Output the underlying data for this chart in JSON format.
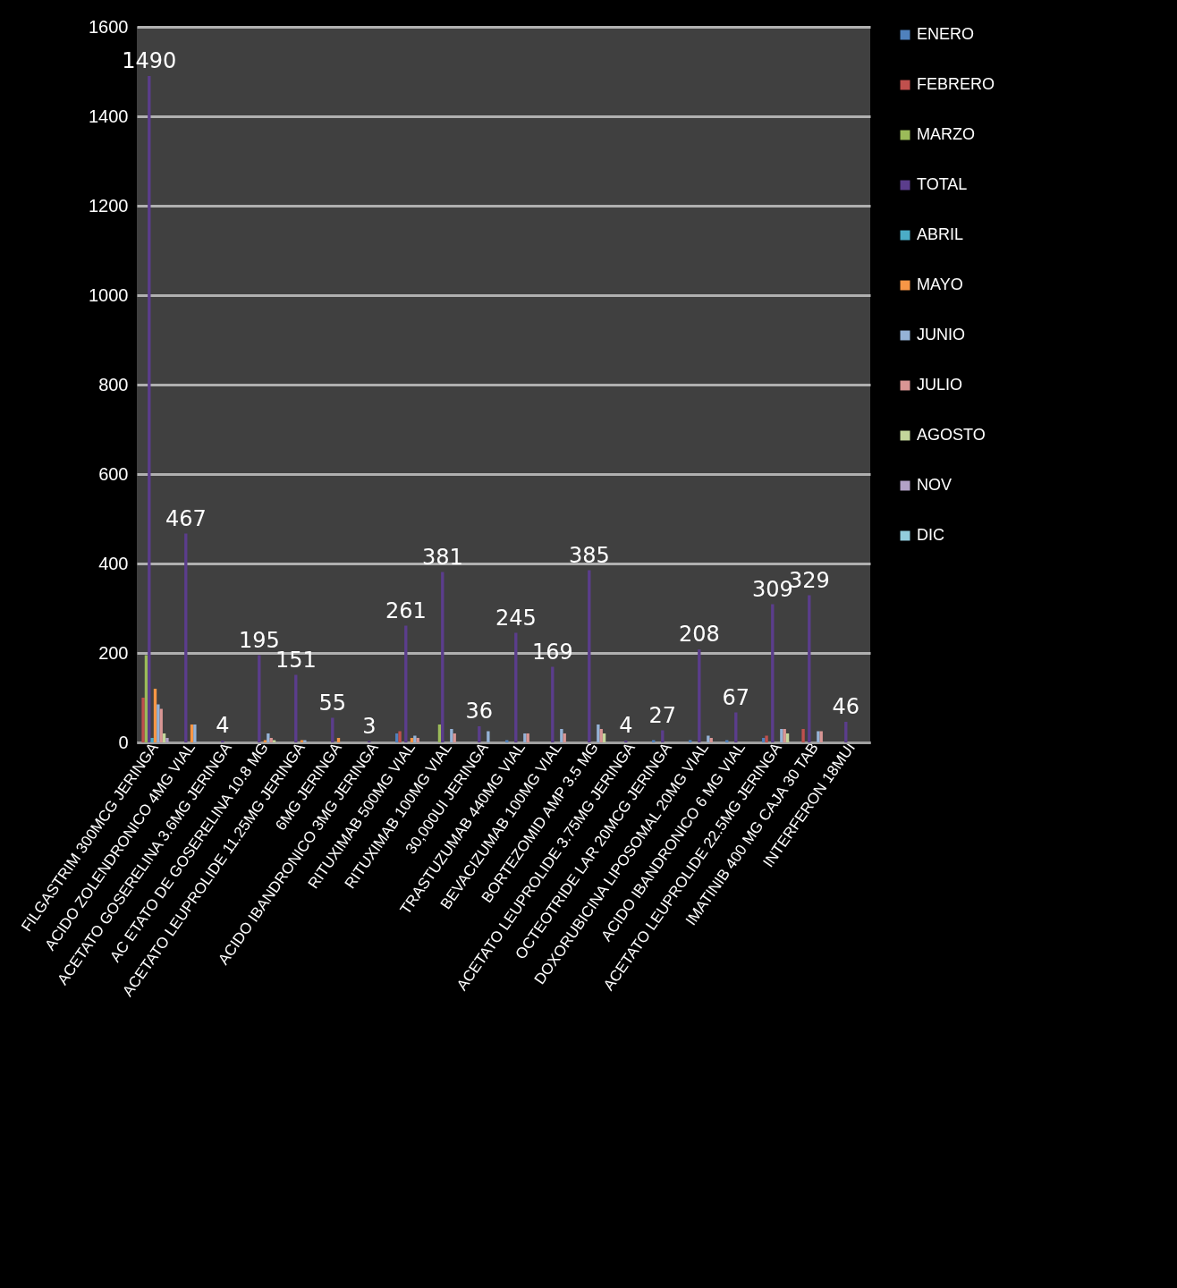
{
  "chart_data": {
    "type": "bar",
    "categories": [
      "FILGASTRIM 300MCG JERINGA",
      "ACIDO ZOLENDRONICO 4MG VIAL",
      "ACETATO GOSERELINA 3.6MG JERINGA",
      "AC ETATO DE GOSERELINA 10.8 MG",
      "ACETATO LEUPROLIDE 11.25MG JERINGA",
      "6MG JERINGA",
      "ACIDO IBANDRONICO 3MG JERINGA",
      "RITUXIMAB 500MG VIAL",
      "RITUXIMAB 100MG VIAL",
      "30,000UI JERINGA",
      "TRASTUZUMAB 440MG VIAL",
      "BEVACIZUMAB 100MG VIAL",
      "BORTEZOMID AMP 3.5 MG",
      "ACETATO LEUPROLIDE 3.75MG JERINGA",
      "OCTEOTRIDE LAR 20MCG JERINGA",
      "DOXORUBICINA LIPOSOMAL 20MG VIAL",
      "ACIDO IBANDRONICO 6 MG VIAL",
      "ACETATO LEUPROLIDE 22.5MG JERINGA",
      "IMATINIB 400 MG CAJA 30 TAB",
      "INTERFERON 18MUI"
    ],
    "series": [
      {
        "name": "ENERO",
        "color": "#4f81bd",
        "values": [
          0,
          0,
          0,
          0,
          0,
          0,
          0,
          20,
          0,
          0,
          5,
          0,
          0,
          0,
          5,
          5,
          5,
          10,
          0,
          0
        ]
      },
      {
        "name": "FEBRERO",
        "color": "#c0504d",
        "values": [
          100,
          0,
          0,
          0,
          0,
          0,
          0,
          25,
          0,
          0,
          0,
          0,
          0,
          0,
          0,
          0,
          0,
          15,
          30,
          0
        ]
      },
      {
        "name": "MARZO",
        "color": "#9bbb59",
        "values": [
          195,
          0,
          0,
          0,
          0,
          0,
          0,
          0,
          40,
          0,
          0,
          0,
          0,
          0,
          0,
          0,
          0,
          0,
          0,
          0
        ]
      },
      {
        "name": "TOTAL",
        "color": "#5b3d8c",
        "values": [
          1490,
          467,
          4,
          195,
          151,
          55,
          3,
          261,
          381,
          36,
          245,
          169,
          385,
          4,
          27,
          208,
          67,
          309,
          329,
          46
        ],
        "value_labels": [
          "1490",
          "467",
          "4",
          "195",
          "151",
          "55",
          "3",
          "261",
          "381",
          "36",
          "245",
          "169",
          "385",
          "4",
          "27",
          "208",
          "67",
          "309",
          "329",
          "46"
        ]
      },
      {
        "name": "ABRIL",
        "color": "#4bacc6",
        "values": [
          10,
          0,
          0,
          0,
          0,
          0,
          0,
          0,
          0,
          0,
          0,
          0,
          0,
          0,
          0,
          0,
          0,
          0,
          0,
          0
        ]
      },
      {
        "name": "MAYO",
        "color": "#f79646",
        "values": [
          120,
          40,
          0,
          5,
          5,
          10,
          0,
          10,
          0,
          0,
          0,
          0,
          0,
          0,
          0,
          0,
          0,
          0,
          0,
          0
        ]
      },
      {
        "name": "JUNIO",
        "color": "#95b3d7",
        "values": [
          85,
          40,
          0,
          20,
          5,
          0,
          0,
          15,
          30,
          25,
          20,
          30,
          40,
          0,
          0,
          15,
          0,
          30,
          25,
          0
        ]
      },
      {
        "name": "JULIO",
        "color": "#d99694",
        "values": [
          75,
          0,
          0,
          10,
          0,
          0,
          0,
          10,
          20,
          0,
          20,
          20,
          30,
          0,
          0,
          10,
          0,
          30,
          25,
          0
        ]
      },
      {
        "name": "AGOSTO",
        "color": "#c3d69b",
        "values": [
          20,
          0,
          0,
          5,
          0,
          0,
          0,
          0,
          0,
          0,
          0,
          0,
          20,
          0,
          0,
          0,
          0,
          20,
          0,
          0
        ]
      },
      {
        "name": "NOV",
        "color": "#b3a2c7",
        "values": [
          10,
          0,
          0,
          0,
          0,
          0,
          0,
          0,
          0,
          0,
          0,
          0,
          0,
          0,
          0,
          0,
          0,
          0,
          0,
          0
        ]
      },
      {
        "name": "DIC",
        "color": "#93cddd",
        "values": [
          0,
          0,
          0,
          0,
          0,
          0,
          0,
          0,
          0,
          0,
          0,
          0,
          0,
          0,
          0,
          0,
          0,
          0,
          0,
          0
        ]
      }
    ],
    "ylim": [
      0,
      1600
    ],
    "yticks": [
      0,
      200,
      400,
      600,
      800,
      1000,
      1200,
      1400,
      1600
    ],
    "grid": "y",
    "legend": "right"
  }
}
